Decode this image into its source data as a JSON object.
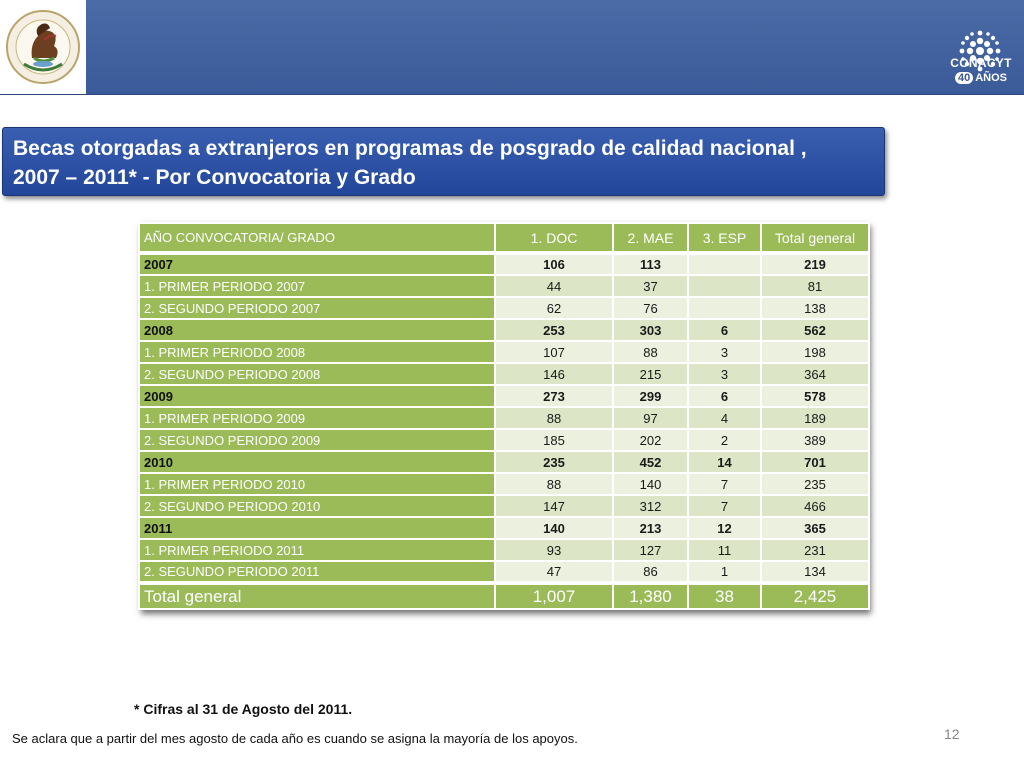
{
  "slide": {
    "title_line1": "Becas otorgadas a extranjeros en programas de posgrado de calidad nacional ,",
    "title_line2": "2007 – 2011* -  Por  Convocatoria y Grado",
    "note": "* Cifras al 31 de Agosto del 2011.",
    "footnote": "Se aclara que a partir del  mes agosto de cada año es cuando se asigna la mayoría de los apoyos.",
    "page_number": "12"
  },
  "logos": {
    "left": "mexican-coat-of-arms",
    "right_name": "CONACYT",
    "right_years_num": "40",
    "right_years_text": "AÑOS"
  },
  "colors": {
    "header_band": "#3b5a99",
    "title_box": "#22469a",
    "table_green": "#9bbb59",
    "cell_light": "#ebf1de"
  },
  "table": {
    "headers": [
      "AÑO CONVOCATORIA/ GRADO",
      "1. DOC",
      "2. MAE",
      "3. ESP",
      "Total general"
    ],
    "rows": [
      {
        "label": "2007",
        "doc": "106",
        "mae": "113",
        "esp": "",
        "total": "219",
        "type": "year"
      },
      {
        "label": "1. PRIMER PERIODO 2007",
        "doc": "44",
        "mae": "37",
        "esp": "",
        "total": "81",
        "type": "period"
      },
      {
        "label": "2. SEGUNDO PERIODO 2007",
        "doc": "62",
        "mae": "76",
        "esp": "",
        "total": "138",
        "type": "period"
      },
      {
        "label": "2008",
        "doc": "253",
        "mae": "303",
        "esp": "6",
        "total": "562",
        "type": "year"
      },
      {
        "label": "1. PRIMER PERIODO 2008",
        "doc": "107",
        "mae": "88",
        "esp": "3",
        "total": "198",
        "type": "period"
      },
      {
        "label": "2. SEGUNDO PERIODO 2008",
        "doc": "146",
        "mae": "215",
        "esp": "3",
        "total": "364",
        "type": "period"
      },
      {
        "label": "2009",
        "doc": "273",
        "mae": "299",
        "esp": "6",
        "total": "578",
        "type": "year"
      },
      {
        "label": "1. PRIMER PERIODO 2009",
        "doc": "88",
        "mae": "97",
        "esp": "4",
        "total": "189",
        "type": "period"
      },
      {
        "label": "2. SEGUNDO PERIODO 2009",
        "doc": "185",
        "mae": "202",
        "esp": "2",
        "total": "389",
        "type": "period"
      },
      {
        "label": "2010",
        "doc": "235",
        "mae": "452",
        "esp": "14",
        "total": "701",
        "type": "year"
      },
      {
        "label": "1. PRIMER PERIODO 2010",
        "doc": "88",
        "mae": "140",
        "esp": "7",
        "total": "235",
        "type": "period"
      },
      {
        "label": "2. SEGUNDO PERIODO 2010",
        "doc": "147",
        "mae": "312",
        "esp": "7",
        "total": "466",
        "type": "period"
      },
      {
        "label": "2011",
        "doc": "140",
        "mae": "213",
        "esp": "12",
        "total": "365",
        "type": "year"
      },
      {
        "label": "1. PRIMER PERIODO 2011",
        "doc": "93",
        "mae": "127",
        "esp": "11",
        "total": "231",
        "type": "period"
      },
      {
        "label": "2. SEGUNDO PERIODO 2011",
        "doc": "47",
        "mae": "86",
        "esp": "1",
        "total": "134",
        "type": "period"
      }
    ],
    "total": {
      "label": "Total general",
      "doc": "1,007",
      "mae": "1,380",
      "esp": "38",
      "total": "2,425"
    }
  }
}
